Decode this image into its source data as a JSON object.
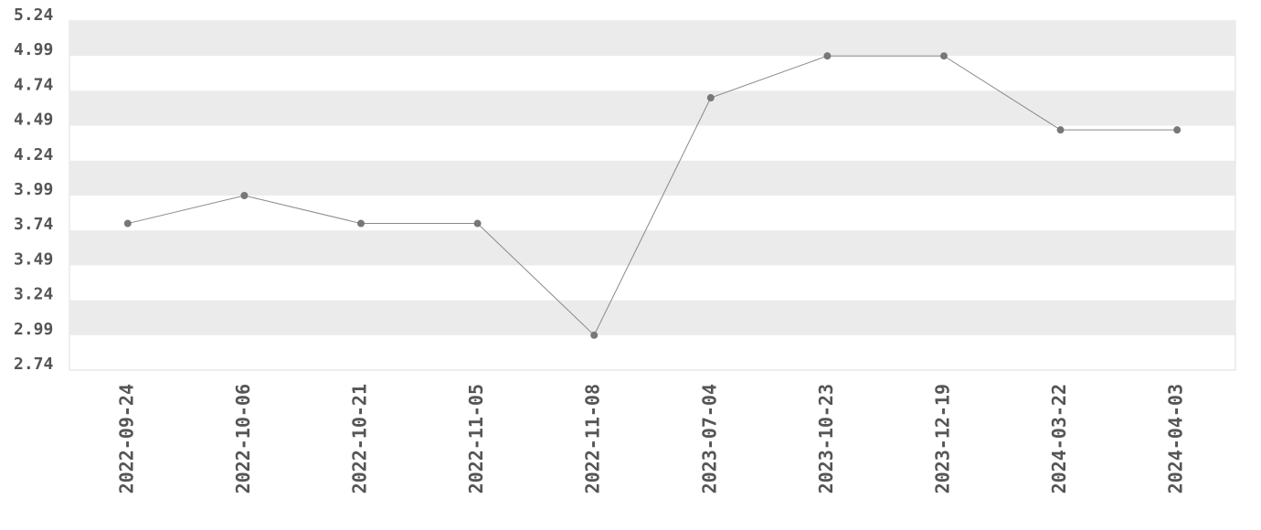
{
  "chart_data": {
    "type": "line",
    "categories": [
      "2022-09-24",
      "2022-10-06",
      "2022-10-21",
      "2022-11-05",
      "2022-11-08",
      "2023-07-04",
      "2023-10-23",
      "2023-12-19",
      "2024-03-22",
      "2024-04-03"
    ],
    "values": [
      3.79,
      3.99,
      3.79,
      3.79,
      2.99,
      4.69,
      4.99,
      4.99,
      4.46,
      4.46
    ],
    "color": "#888888",
    "marker_color": "#777777",
    "band_color": "#ebebeb",
    "ylim": [
      2.74,
      5.24
    ],
    "yticks": [
      2.74,
      2.99,
      3.24,
      3.49,
      3.74,
      3.99,
      4.24,
      4.49,
      4.74,
      4.99,
      5.24
    ],
    "grid": true
  }
}
